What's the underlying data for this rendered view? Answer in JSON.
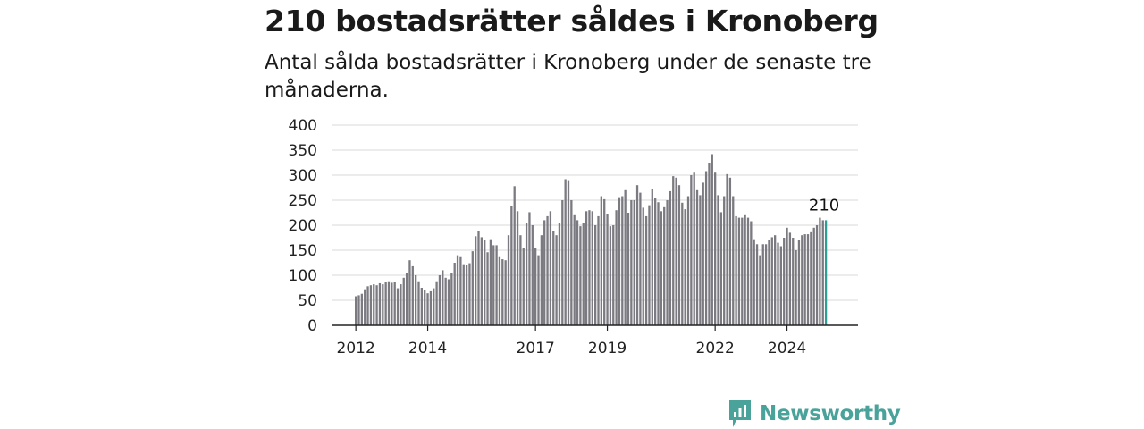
{
  "header": {
    "title": "210 bostadsrätter såldes i Kronoberg",
    "subtitle": "Antal sålda bostadsrätter i Kronoberg under de senaste tre månaderna."
  },
  "brand": {
    "name": "Newsworthy",
    "icon": "newsworthy-logo-icon",
    "color": "#4aa39a"
  },
  "colors": {
    "bar": "#7a7a80",
    "highlight": "#2e9e94",
    "grid": "#d9d9d9",
    "axis": "#222222"
  },
  "chart_data": {
    "type": "bar",
    "start": "2012-01",
    "interval": "month",
    "x_ticks": [
      "2012",
      "2014",
      "2017",
      "2019",
      "2022",
      "2024"
    ],
    "y_ticks": [
      "0",
      "50",
      "100",
      "150",
      "200",
      "250",
      "300",
      "350",
      "400"
    ],
    "ylim": [
      0,
      400
    ],
    "grid": true,
    "values": [
      58,
      60,
      63,
      72,
      78,
      80,
      82,
      80,
      84,
      82,
      86,
      88,
      85,
      86,
      74,
      82,
      95,
      105,
      130,
      118,
      100,
      88,
      75,
      70,
      64,
      68,
      74,
      88,
      100,
      110,
      95,
      92,
      105,
      125,
      140,
      138,
      122,
      120,
      124,
      148,
      178,
      188,
      176,
      170,
      146,
      172,
      160,
      160,
      138,
      132,
      130,
      180,
      238,
      278,
      228,
      180,
      155,
      205,
      226,
      200,
      155,
      140,
      180,
      210,
      218,
      228,
      188,
      180,
      205,
      250,
      292,
      290,
      250,
      220,
      210,
      198,
      205,
      228,
      230,
      228,
      200,
      218,
      258,
      252,
      222,
      198,
      200,
      230,
      256,
      258,
      270,
      225,
      250,
      250,
      280,
      265,
      235,
      218,
      240,
      272,
      255,
      246,
      228,
      236,
      250,
      268,
      298,
      295,
      280,
      245,
      232,
      258,
      300,
      305,
      270,
      260,
      285,
      308,
      325,
      342,
      305,
      260,
      226,
      258,
      302,
      295,
      258,
      218,
      215,
      215,
      220,
      215,
      208,
      172,
      162,
      140,
      162,
      162,
      170,
      176,
      180,
      165,
      158,
      175,
      195,
      185,
      175,
      150,
      170,
      180,
      182,
      182,
      186,
      195,
      200,
      215,
      210,
      210
    ]
  }
}
